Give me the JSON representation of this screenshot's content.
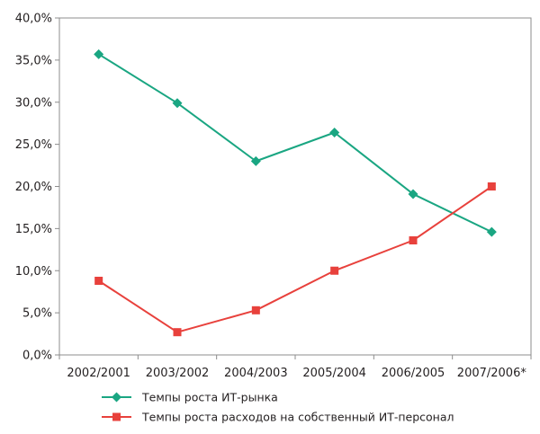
{
  "chart_data": {
    "type": "line",
    "categories": [
      "2002/2001",
      "2003/2002",
      "2004/2003",
      "2005/2004",
      "2006/2005",
      "2007/2006*"
    ],
    "ylim": [
      0,
      40
    ],
    "yticks": [
      0,
      5,
      10,
      15,
      20,
      25,
      30,
      35,
      40
    ],
    "ytick_labels": [
      "0,0%",
      "5,0%",
      "10,0%",
      "15,0%",
      "20,0%",
      "25,0%",
      "30,0%",
      "35,0%",
      "40,0%"
    ],
    "grid": false,
    "legend_position": "bottom",
    "series": [
      {
        "name": "Темпы роста ИТ-рынка",
        "color": "#1aa682",
        "marker": "diamond",
        "values": [
          35.7,
          29.9,
          23.0,
          26.4,
          19.1,
          14.6
        ]
      },
      {
        "name": "Темпы роста расходов на собственный ИТ-персонал",
        "color": "#e8413c",
        "marker": "square",
        "values": [
          8.8,
          2.7,
          5.3,
          10.0,
          13.6,
          20.0
        ]
      }
    ]
  }
}
